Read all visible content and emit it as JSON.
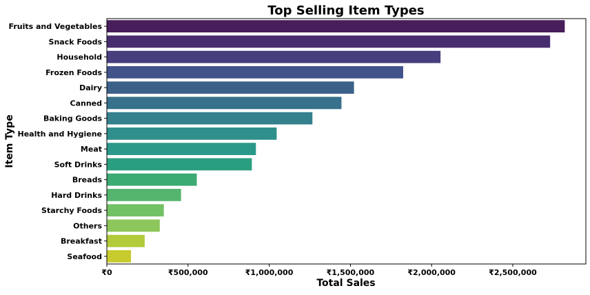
{
  "chart_data": {
    "type": "bar",
    "orientation": "horizontal",
    "title": "Top Selling Item Types",
    "xlabel": "Total Sales",
    "ylabel": "Item Type",
    "xlim": [
      0,
      2950000
    ],
    "xticks": [
      0,
      500000,
      1000000,
      1500000,
      2000000,
      2500000
    ],
    "xtick_labels": [
      "₹0",
      "₹500,000",
      "₹1,000,000",
      "₹1,500,000",
      "₹2,000,000",
      "₹2,500,000"
    ],
    "grid": false,
    "legend": "none",
    "colormap": "viridis",
    "categories": [
      "Fruits and Vegetables",
      "Snack Foods",
      "Household",
      "Frozen Foods",
      "Dairy",
      "Canned",
      "Baking Goods",
      "Health and Hygiene",
      "Meat",
      "Soft Drinks",
      "Breads",
      "Hard Drinks",
      "Starchy Foods",
      "Others",
      "Breakfast",
      "Seafood"
    ],
    "values": [
      2820000,
      2730000,
      2055000,
      1825000,
      1522000,
      1445000,
      1266000,
      1046000,
      918000,
      893000,
      554000,
      457000,
      351000,
      326000,
      233000,
      149000
    ],
    "colors": [
      "#471d5a",
      "#482d6e",
      "#463e7d",
      "#42528a",
      "#3c6189",
      "#37718b",
      "#34808d",
      "#2f8f8b",
      "#2a998a",
      "#2a9f7f",
      "#3baa73",
      "#55b56e",
      "#73c165",
      "#8dc65a",
      "#b1cb3a",
      "#c8cb2e"
    ]
  }
}
